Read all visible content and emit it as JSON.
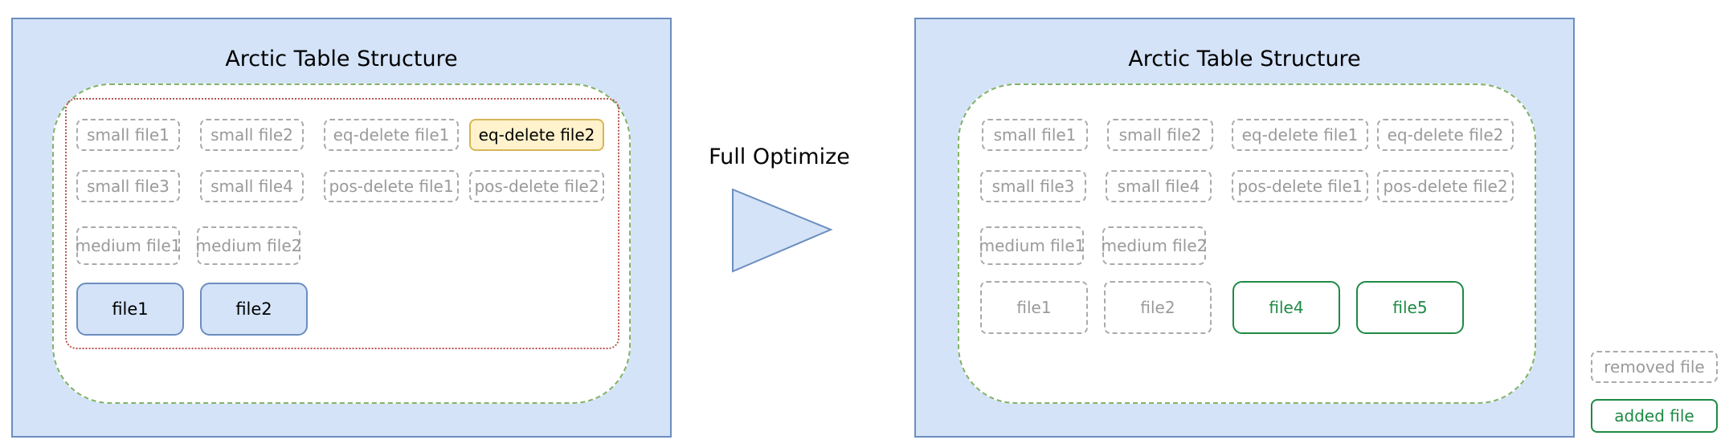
{
  "panels": {
    "title": "Arctic Table Structure"
  },
  "left": {
    "small_files": [
      "small file1",
      "small file2",
      "small file3",
      "small file4"
    ],
    "eq_delete_files": [
      "eq-delete file1",
      "eq-delete file2"
    ],
    "pos_delete_files": [
      "pos-delete file1",
      "pos-delete file2"
    ],
    "medium_files": [
      "medium file1",
      "medium file2"
    ],
    "base_files": [
      "file1",
      "file2"
    ]
  },
  "arrow": {
    "label": "Full Optimize"
  },
  "right": {
    "small_files": [
      "small file1",
      "small file2",
      "small file3",
      "small file4"
    ],
    "eq_delete_files": [
      "eq-delete file1",
      "eq-delete file2"
    ],
    "pos_delete_files": [
      "pos-delete file1",
      "pos-delete file2"
    ],
    "medium_files": [
      "medium file1",
      "medium file2"
    ],
    "base_files": [
      "file1",
      "file2"
    ],
    "new_files": [
      "file4",
      "file5"
    ]
  },
  "legend": {
    "removed": "removed file",
    "added": "added file"
  },
  "colors": {
    "panel_fill": "#d4e3f8",
    "panel_border": "#6c8ebf",
    "group_border": "#82b366",
    "inner_border": "#b85450",
    "removed": "#aaaaaa",
    "added": "#1e8a44",
    "highlight_fill": "#fff2cc",
    "highlight_border": "#d6b656"
  }
}
